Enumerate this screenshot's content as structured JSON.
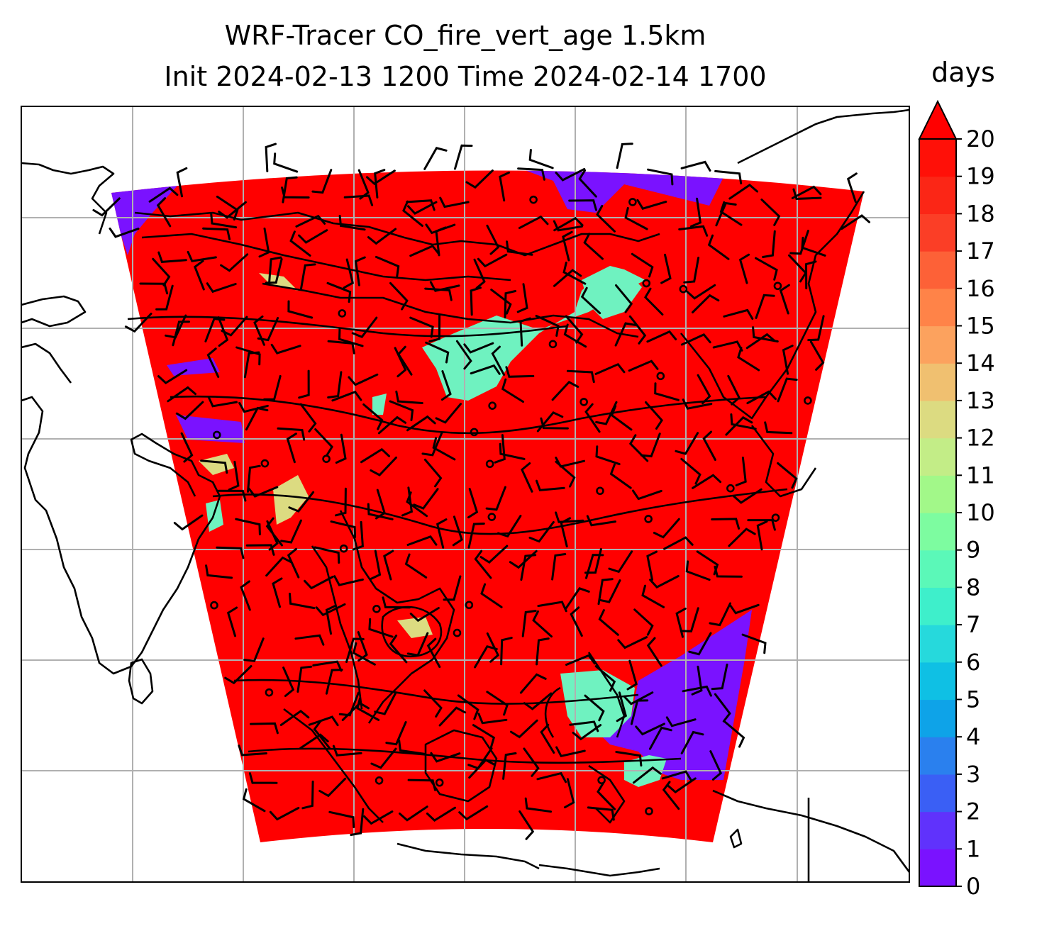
{
  "title": {
    "line1": "WRF-Tracer CO_fire_vert_age 1.5km",
    "line2": "Init 2024-02-13 1200 Time 2024-02-14 1700"
  },
  "colorbar": {
    "unit_label": "days",
    "min": 0,
    "max": 20,
    "extend": "max",
    "ticks": [
      "0",
      "1",
      "2",
      "3",
      "4",
      "5",
      "6",
      "7",
      "8",
      "9",
      "10",
      "11",
      "12",
      "13",
      "14",
      "15",
      "16",
      "17",
      "18",
      "19",
      "20"
    ],
    "colors": [
      "#7a12ff",
      "#6032fc",
      "#3a5ff5",
      "#2a80ee",
      "#0ea3e8",
      "#0fc0e4",
      "#26d9dc",
      "#3eefcb",
      "#5bf8b8",
      "#7dfca0",
      "#a2f889",
      "#c3ed87",
      "#dcdb81",
      "#f0c070",
      "#fca25e",
      "#ff8348",
      "#fd6137",
      "#fb3e26",
      "#fb2616",
      "#ff1008"
    ],
    "over_color": "#ff0000"
  },
  "map": {
    "gridlines": true,
    "background": "#ffffff",
    "domain_fill": "#ff0000",
    "clean_air_color": "#7a12ff",
    "low_age_color": "#6ff2c0",
    "mid_age_color": "#dcdb81"
  }
}
